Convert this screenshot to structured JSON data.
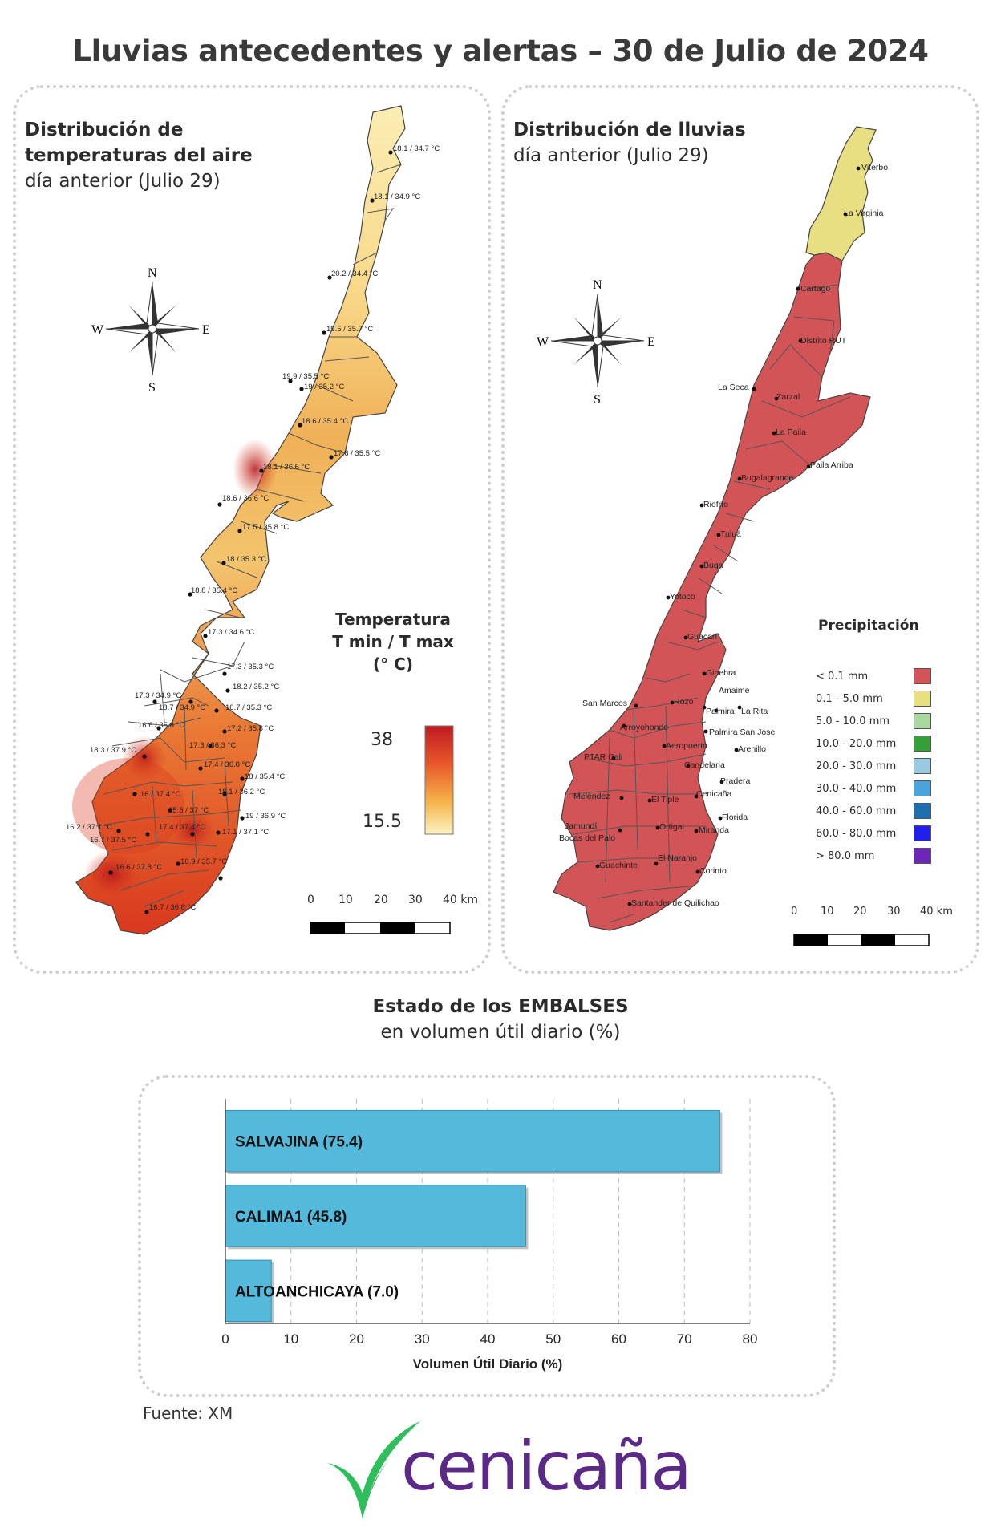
{
  "title": "Lluvias antecedentes y alertas – 30 de Julio de 2024",
  "temp_panel": {
    "title_bold": "Distribución de temperaturas del aire",
    "subtitle": "día anterior (Julio 29)",
    "legend_title": [
      "Temperatura",
      "T min / T max",
      "(° C)"
    ],
    "legend_max": "38",
    "legend_min": "15.5",
    "compass": {
      "n": "N",
      "s": "S",
      "e": "E",
      "w": "W"
    },
    "stations": [
      "18.1 / 34.7 °C",
      "18.1 / 34.9 °C",
      "20.2 / 34.4 °C",
      "19.5 / 35.7 °C",
      "19.9 / 35.5 °C",
      "19 / 35.2 °C",
      "18.6 / 35.4 °C",
      "17.6 / 35.5 °C",
      "18.1 / 36.6 °C",
      "18.6 / 36.6 °C",
      "17.5 / 35.8 °C",
      "18 / 35.3 °C",
      "18.8 / 35.4 °C",
      "17.3 / 34.6 °C",
      "17.3 / 35.3 °C",
      "18.2 / 35.2 °C",
      "17.3 / 34.9 °C",
      "18.7 / 34.9 °C",
      "16.7 / 35.3 °C",
      "16.6 / 35.8 °C",
      "17.2 / 35.8 °C",
      "18.3 / 37.9 °C",
      "17.3 / 36.3 °C",
      "17.4 / 36.8 °C",
      "18 / 35.4 °C",
      "16 / 37.4 °C",
      "18.1 / 36.2 °C",
      "15.5 / 37 °C",
      "19 / 36.9 °C",
      "16.2 / 37.1 °C",
      "17.4 / 37.4 °C",
      "17.1 / 37.1 °C",
      "16.7 / 37.5 °C",
      "16.6 / 37.8 °C",
      "16.9 / 35.7 °C",
      "16.7 / 36.8 °C"
    ],
    "scale": [
      "0",
      "10",
      "20",
      "30",
      "40 km"
    ]
  },
  "rain_panel": {
    "title_bold": "Distribución de lluvias",
    "subtitle": "día anterior (Julio 29)",
    "compass": {
      "n": "N",
      "s": "S",
      "e": "E",
      "w": "W"
    },
    "towns": [
      "Viterbo",
      "La Virginia",
      "Cartago",
      "Distrito RUT",
      "La Seca",
      "Zarzal",
      "La Paila",
      "Paila Arriba",
      "Bugalagrande",
      "Riofrío",
      "Tuluá",
      "Buga",
      "Yotoco",
      "Guacarí",
      "Ginebra",
      "San Marcos",
      "Rozo",
      "Amaime",
      "Palmira",
      "La Rita",
      "Arroyohondo",
      "Palmira San Jose",
      "Aeropuerto",
      "Arenillo",
      "PTAR Cali",
      "Candelaria",
      "Pradera",
      "Meléndez",
      "El Tiple",
      "Cenicaña",
      "Florida",
      "Jamundí",
      "Bocas del Palo",
      "Ortigal",
      "Miranda",
      "Guachinte",
      "El Naranjo",
      "Corinto",
      "Santander de Quilichao"
    ],
    "legend_title": "Precipitación",
    "legend": [
      {
        "label": "< 0.1 mm",
        "color": "#d35456"
      },
      {
        "label": "0.1 - 5.0 mm",
        "color": "#e8de82"
      },
      {
        "label": "5.0 - 10.0 mm",
        "color": "#a9d9a0"
      },
      {
        "label": "10.0 - 20.0 mm",
        "color": "#35a03a"
      },
      {
        "label": "20.0 - 30.0 mm",
        "color": "#9ac9e2"
      },
      {
        "label": "30.0 - 40.0 mm",
        "color": "#4aa3dc"
      },
      {
        "label": "40.0 - 60.0 mm",
        "color": "#1f6fae"
      },
      {
        "label": "60.0 - 80.0 mm",
        "color": "#2020ea"
      },
      {
        "label": "> 80.0 mm",
        "color": "#6d27b6"
      }
    ],
    "scale": [
      "0",
      "10",
      "20",
      "30",
      "40 km"
    ]
  },
  "reservoirs": {
    "title_bold": "Estado de los EMBALSES",
    "subtitle": "en volumen útil diario (%)",
    "source": "Fuente: XM"
  },
  "chart_data": {
    "type": "bar",
    "orientation": "horizontal",
    "categories": [
      "SALVAJINA (75.4)",
      "CALIMA1 (45.8)",
      "ALTOANCHICAYA (7.0)"
    ],
    "values": [
      75.4,
      45.8,
      7.0
    ],
    "xlabel": "Volumen Útil Diario (%)",
    "xlim": [
      0,
      80
    ],
    "xticks": [
      "0",
      "10",
      "20",
      "30",
      "40",
      "50",
      "60",
      "70",
      "80"
    ],
    "grid": true,
    "bar_color": "#54b9da"
  },
  "logo": {
    "text": "cenicaña",
    "color_text": "#5b2a86",
    "color_leaf": "#2ebf5c"
  }
}
